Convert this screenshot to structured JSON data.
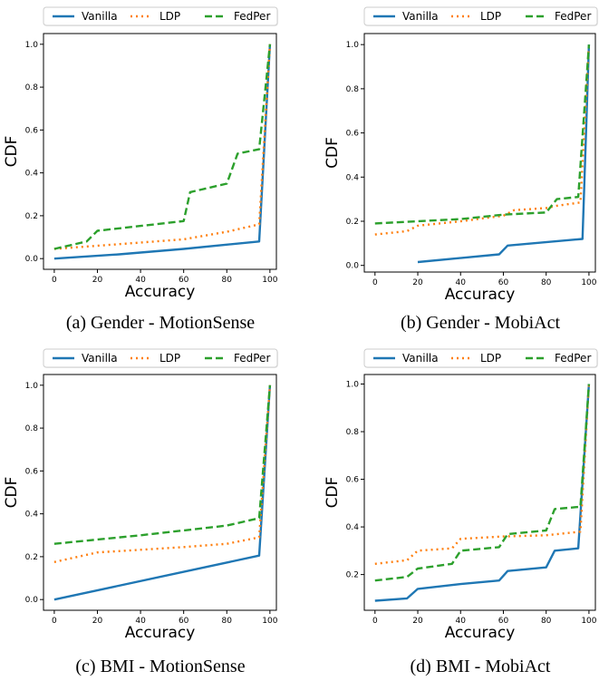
{
  "legend": [
    "Vanilla",
    "LDP",
    "FedPer"
  ],
  "colors": {
    "Vanilla": "#1f77b4",
    "LDP": "#ff7f0e",
    "FedPer": "#2ca02c"
  },
  "chart_data": [
    {
      "type": "line",
      "caption": "(a) Gender - MotionSense",
      "xlabel": "Accuracy",
      "ylabel": "CDF",
      "xlim": [
        -5,
        103
      ],
      "ylim": [
        -0.05,
        1.05
      ],
      "xticks": [
        "0",
        "20",
        "40",
        "60",
        "80",
        "100"
      ],
      "yticks": [
        "0.0",
        "0.2",
        "0.4",
        "0.6",
        "0.8",
        "1.0"
      ],
      "legend_position": "top",
      "series": [
        {
          "name": "Vanilla",
          "style": "solid",
          "points": [
            [
              0,
              0.0
            ],
            [
              30,
              0.02
            ],
            [
              60,
              0.045
            ],
            [
              95,
              0.08
            ],
            [
              100,
              1.0
            ]
          ]
        },
        {
          "name": "LDP",
          "style": "dotted",
          "points": [
            [
              0,
              0.045
            ],
            [
              20,
              0.06
            ],
            [
              40,
              0.075
            ],
            [
              60,
              0.09
            ],
            [
              80,
              0.125
            ],
            [
              95,
              0.16
            ],
            [
              100,
              1.0
            ]
          ]
        },
        {
          "name": "FedPer",
          "style": "dashed",
          "points": [
            [
              0,
              0.045
            ],
            [
              15,
              0.08
            ],
            [
              20,
              0.13
            ],
            [
              60,
              0.175
            ],
            [
              63,
              0.31
            ],
            [
              80,
              0.35
            ],
            [
              85,
              0.49
            ],
            [
              95,
              0.51
            ],
            [
              100,
              1.0
            ]
          ]
        }
      ]
    },
    {
      "type": "line",
      "caption": "(b) Gender - MobiAct",
      "xlabel": "Accuracy",
      "ylabel": "CDF",
      "xlim": [
        -5,
        103
      ],
      "ylim": [
        -0.03,
        1.05
      ],
      "xticks": [
        "0",
        "20",
        "40",
        "60",
        "80",
        "100"
      ],
      "yticks": [
        "0.0",
        "0.2",
        "0.4",
        "0.6",
        "0.8",
        "1.0"
      ],
      "legend_position": "top",
      "series": [
        {
          "name": "Vanilla",
          "style": "solid",
          "points": [
            [
              20,
              0.015
            ],
            [
              58,
              0.05
            ],
            [
              62,
              0.09
            ],
            [
              97,
              0.12
            ],
            [
              100,
              1.0
            ]
          ]
        },
        {
          "name": "LDP",
          "style": "dotted",
          "points": [
            [
              0,
              0.14
            ],
            [
              15,
              0.155
            ],
            [
              20,
              0.18
            ],
            [
              40,
              0.2
            ],
            [
              60,
              0.225
            ],
            [
              65,
              0.25
            ],
            [
              80,
              0.26
            ],
            [
              85,
              0.27
            ],
            [
              96,
              0.285
            ],
            [
              100,
              1.0
            ]
          ]
        },
        {
          "name": "FedPer",
          "style": "dashed",
          "points": [
            [
              0,
              0.19
            ],
            [
              20,
              0.2
            ],
            [
              40,
              0.21
            ],
            [
              60,
              0.23
            ],
            [
              80,
              0.24
            ],
            [
              85,
              0.3
            ],
            [
              95,
              0.31
            ],
            [
              100,
              1.0
            ]
          ]
        }
      ]
    },
    {
      "type": "line",
      "caption": "(c) BMI - MotionSense",
      "xlabel": "Accuracy",
      "ylabel": "CDF",
      "xlim": [
        -5,
        103
      ],
      "ylim": [
        -0.05,
        1.05
      ],
      "xticks": [
        "0",
        "20",
        "40",
        "60",
        "80",
        "100"
      ],
      "yticks": [
        "0.0",
        "0.2",
        "0.4",
        "0.6",
        "0.8",
        "1.0"
      ],
      "legend_position": "top",
      "series": [
        {
          "name": "Vanilla",
          "style": "solid",
          "points": [
            [
              0,
              0.0
            ],
            [
              95,
              0.205
            ],
            [
              100,
              1.0
            ]
          ]
        },
        {
          "name": "LDP",
          "style": "dotted",
          "points": [
            [
              0,
              0.175
            ],
            [
              20,
              0.22
            ],
            [
              60,
              0.245
            ],
            [
              80,
              0.26
            ],
            [
              95,
              0.29
            ],
            [
              100,
              1.0
            ]
          ]
        },
        {
          "name": "FedPer",
          "style": "dashed",
          "points": [
            [
              0,
              0.26
            ],
            [
              40,
              0.3
            ],
            [
              80,
              0.345
            ],
            [
              95,
              0.38
            ],
            [
              100,
              1.0
            ]
          ]
        }
      ]
    },
    {
      "type": "line",
      "caption": "(d) BMI - MobiAct",
      "xlabel": "Accuracy",
      "ylabel": "CDF",
      "xlim": [
        -5,
        103
      ],
      "ylim": [
        0.05,
        1.04
      ],
      "xticks": [
        "0",
        "20",
        "40",
        "60",
        "80",
        "100"
      ],
      "yticks": [
        "0.2",
        "0.4",
        "0.6",
        "0.8",
        "1.0"
      ],
      "legend_position": "top",
      "series": [
        {
          "name": "Vanilla",
          "style": "solid",
          "points": [
            [
              0,
              0.09
            ],
            [
              15,
              0.1
            ],
            [
              20,
              0.14
            ],
            [
              40,
              0.16
            ],
            [
              58,
              0.175
            ],
            [
              62,
              0.215
            ],
            [
              80,
              0.23
            ],
            [
              84,
              0.3
            ],
            [
              95,
              0.31
            ],
            [
              100,
              1.0
            ]
          ]
        },
        {
          "name": "LDP",
          "style": "dotted",
          "points": [
            [
              0,
              0.245
            ],
            [
              15,
              0.26
            ],
            [
              20,
              0.3
            ],
            [
              36,
              0.31
            ],
            [
              40,
              0.35
            ],
            [
              60,
              0.36
            ],
            [
              80,
              0.365
            ],
            [
              96,
              0.38
            ],
            [
              100,
              1.0
            ]
          ]
        },
        {
          "name": "FedPer",
          "style": "dashed",
          "points": [
            [
              0,
              0.175
            ],
            [
              15,
              0.19
            ],
            [
              20,
              0.225
            ],
            [
              36,
              0.245
            ],
            [
              40,
              0.3
            ],
            [
              58,
              0.315
            ],
            [
              62,
              0.37
            ],
            [
              80,
              0.385
            ],
            [
              84,
              0.475
            ],
            [
              96,
              0.485
            ],
            [
              100,
              1.0
            ]
          ]
        }
      ]
    }
  ]
}
